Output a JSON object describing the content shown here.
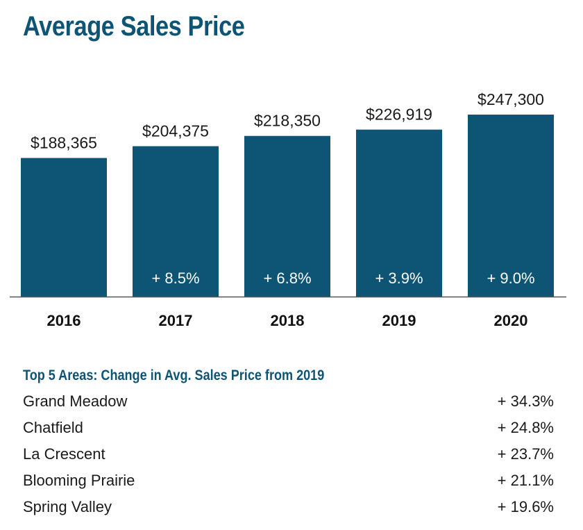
{
  "title": "Average Sales Price",
  "colors": {
    "bar": "#0e5475",
    "title": "#0e5475",
    "axis": "#555555"
  },
  "chart_data": {
    "type": "bar",
    "title": "Average Sales Price",
    "categories": [
      "2016",
      "2017",
      "2018",
      "2019",
      "2020"
    ],
    "values": [
      188365,
      204375,
      218350,
      226919,
      247300
    ],
    "value_labels": [
      "$188,365",
      "$204,375",
      "$218,350",
      "$226,919",
      "$247,300"
    ],
    "change_labels": [
      "",
      "+ 8.5%",
      "+ 6.8%",
      "+ 3.9%",
      "+ 9.0%"
    ],
    "xlabel": "",
    "ylabel": "",
    "ylim": [
      0,
      247300
    ],
    "grid": false,
    "legend": "none"
  },
  "top_areas": {
    "title": "Top 5 Areas: Change in Avg. Sales Price from 2019",
    "rows": [
      {
        "name": "Grand Meadow",
        "change": "+ 34.3%"
      },
      {
        "name": "Chatfield",
        "change": "+ 24.8%"
      },
      {
        "name": "La Crescent",
        "change": "+ 23.7%"
      },
      {
        "name": "Blooming Prairie",
        "change": "+ 21.1%"
      },
      {
        "name": "Spring Valley",
        "change": "+ 19.6%"
      }
    ]
  }
}
